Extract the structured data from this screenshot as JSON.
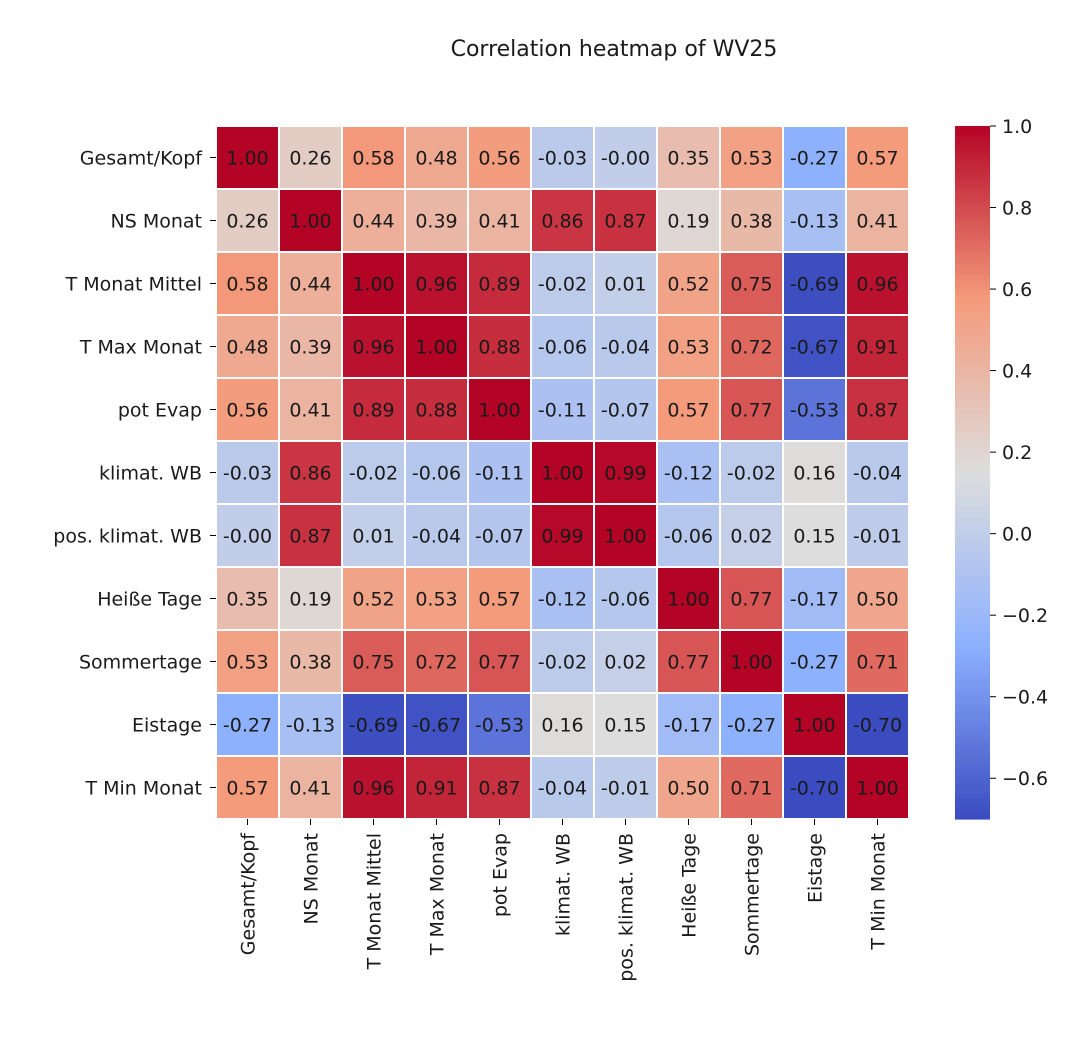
{
  "chart_data": {
    "type": "heatmap",
    "title": "Correlation heatmap of WV25",
    "xlabel": "",
    "ylabel": "",
    "labels": [
      "Gesamt/Kopf",
      "NS Monat",
      "T Monat Mittel",
      "T Max Monat",
      "pot Evap",
      "klimat. WB",
      "pos. klimat. WB",
      "Heiße Tage",
      "Sommertage",
      "Eistage",
      "T Min Monat"
    ],
    "matrix": [
      [
        1.0,
        0.26,
        0.58,
        0.48,
        0.56,
        -0.03,
        -0.0,
        0.35,
        0.53,
        -0.27,
        0.57
      ],
      [
        0.26,
        1.0,
        0.44,
        0.39,
        0.41,
        0.86,
        0.87,
        0.19,
        0.38,
        -0.13,
        0.41
      ],
      [
        0.58,
        0.44,
        1.0,
        0.96,
        0.89,
        -0.02,
        0.01,
        0.52,
        0.75,
        -0.69,
        0.96
      ],
      [
        0.48,
        0.39,
        0.96,
        1.0,
        0.88,
        -0.06,
        -0.04,
        0.53,
        0.72,
        -0.67,
        0.91
      ],
      [
        0.56,
        0.41,
        0.89,
        0.88,
        1.0,
        -0.11,
        -0.07,
        0.57,
        0.77,
        -0.53,
        0.87
      ],
      [
        -0.03,
        0.86,
        -0.02,
        -0.06,
        -0.11,
        1.0,
        0.99,
        -0.12,
        -0.02,
        0.16,
        -0.04
      ],
      [
        -0.0,
        0.87,
        0.01,
        -0.04,
        -0.07,
        0.99,
        1.0,
        -0.06,
        0.02,
        0.15,
        -0.01
      ],
      [
        0.35,
        0.19,
        0.52,
        0.53,
        0.57,
        -0.12,
        -0.06,
        1.0,
        0.77,
        -0.17,
        0.5
      ],
      [
        0.53,
        0.38,
        0.75,
        0.72,
        0.77,
        -0.02,
        0.02,
        0.77,
        1.0,
        -0.27,
        0.71
      ],
      [
        -0.27,
        -0.13,
        -0.69,
        -0.67,
        -0.53,
        0.16,
        0.15,
        -0.17,
        -0.27,
        1.0,
        -0.7
      ],
      [
        0.57,
        0.41,
        0.96,
        0.91,
        0.87,
        -0.04,
        -0.01,
        0.5,
        0.71,
        -0.7,
        1.0
      ]
    ],
    "cell_labels": [
      [
        "1.00",
        "0.26",
        "0.58",
        "0.48",
        "0.56",
        "-0.03",
        "-0.00",
        "0.35",
        "0.53",
        "-0.27",
        "0.57"
      ],
      [
        "0.26",
        "1.00",
        "0.44",
        "0.39",
        "0.41",
        "0.86",
        "0.87",
        "0.19",
        "0.38",
        "-0.13",
        "0.41"
      ],
      [
        "0.58",
        "0.44",
        "1.00",
        "0.96",
        "0.89",
        "-0.02",
        "0.01",
        "0.52",
        "0.75",
        "-0.69",
        "0.96"
      ],
      [
        "0.48",
        "0.39",
        "0.96",
        "1.00",
        "0.88",
        "-0.06",
        "-0.04",
        "0.53",
        "0.72",
        "-0.67",
        "0.91"
      ],
      [
        "0.56",
        "0.41",
        "0.89",
        "0.88",
        "1.00",
        "-0.11",
        "-0.07",
        "0.57",
        "0.77",
        "-0.53",
        "0.87"
      ],
      [
        "-0.03",
        "0.86",
        "-0.02",
        "-0.06",
        "-0.11",
        "1.00",
        "0.99",
        "-0.12",
        "-0.02",
        "0.16",
        "-0.04"
      ],
      [
        "-0.00",
        "0.87",
        "0.01",
        "-0.04",
        "-0.07",
        "0.99",
        "1.00",
        "-0.06",
        "0.02",
        "0.15",
        "-0.01"
      ],
      [
        "0.35",
        "0.19",
        "0.52",
        "0.53",
        "0.57",
        "-0.12",
        "-0.06",
        "1.00",
        "0.77",
        "-0.17",
        "0.50"
      ],
      [
        "0.53",
        "0.38",
        "0.75",
        "0.72",
        "0.77",
        "-0.02",
        "0.02",
        "0.77",
        "1.00",
        "-0.27",
        "0.71"
      ],
      [
        "-0.27",
        "-0.13",
        "-0.69",
        "-0.67",
        "-0.53",
        "0.16",
        "0.15",
        "-0.17",
        "-0.27",
        "1.00",
        "-0.70"
      ],
      [
        "0.57",
        "0.41",
        "0.96",
        "0.91",
        "0.87",
        "-0.04",
        "-0.01",
        "0.50",
        "0.71",
        "-0.70",
        "1.00"
      ]
    ],
    "colormap": "coolwarm",
    "color_stops": [
      "#3b4cc0",
      "#8db0fe",
      "#dddddd",
      "#f49a7b",
      "#b40426"
    ],
    "vmin": -0.7,
    "vmax": 1.0,
    "colorbar": {
      "ticks": [
        1.0,
        0.8,
        0.6,
        0.4,
        0.2,
        0.0,
        -0.2,
        -0.4,
        -0.6
      ],
      "tick_labels": [
        "1.0",
        "0.8",
        "0.6",
        "0.4",
        "0.2",
        "0.0",
        "−0.2",
        "−0.4",
        "−0.6"
      ]
    },
    "grid": true,
    "cell_separator_color": "#ffffff",
    "annotation_text_colors": {
      "light": "#ffffff",
      "dark": "#262626"
    }
  }
}
